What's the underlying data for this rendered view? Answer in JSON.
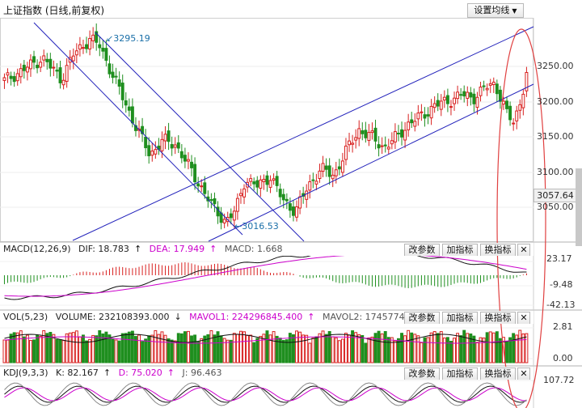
{
  "header": {
    "title": "上证指数",
    "period": "(日线,前复权)",
    "settings_label": "设置均线",
    "settings_icon": "caret-down-icon"
  },
  "main_chart": {
    "yaxis_ticks": [
      "3250.00",
      "3200.00",
      "3150.00",
      "3100.00",
      "3050.00"
    ],
    "current_price": "3057.64",
    "high_annotation": "3295.19",
    "low_annotation": "3016.53"
  },
  "macd": {
    "name": "MACD(12,26,9)",
    "dif": "DIF: 18.783",
    "dea": "DEA: 17.949",
    "macd": "MACD: 1.668",
    "ticks": [
      "23.17",
      "-9.48",
      "-42.13"
    ]
  },
  "vol": {
    "name": "VOL(5,23)",
    "volume": "VOLUME: 232108393.000",
    "mavol1": "MAVOL1: 224296845.400",
    "mavol2": "MAVOL2: 1745774",
    "ticks": [
      "2.81",
      "0.00"
    ]
  },
  "kdj": {
    "name": "KDJ(9,3,3)",
    "k": "K: 82.167",
    "d": "D: 75.020",
    "j": "J: 96.463",
    "ticks": [
      "107.72"
    ]
  },
  "buttons": {
    "change_params": "改参数",
    "add_indicator": "加指标",
    "swap_indicator": "换指标",
    "close": "✕"
  },
  "colors": {
    "up": "#d8201f",
    "down": "#1f8f1f",
    "trend": "#2222bb",
    "dea": "#cc00cc",
    "annotation": "#1a6fa8",
    "ellipse": "#e04040"
  },
  "chart_data": [
    {
      "type": "candlestick",
      "title": "上证指数 (日线,前复权)",
      "ylim": [
        3000,
        3300
      ],
      "annotations": [
        {
          "label": "3295.19",
          "value": 3295.19
        },
        {
          "label": "3016.53",
          "value": 3016.53
        }
      ],
      "last_close": 3057.64
    },
    {
      "type": "bar",
      "title": "MACD(12,26,9)",
      "series": [
        {
          "name": "DIF",
          "last": 18.783
        },
        {
          "name": "DEA",
          "last": 17.949
        },
        {
          "name": "MACD",
          "last": 1.668
        }
      ],
      "ylim": [
        -42.13,
        23.17
      ]
    },
    {
      "type": "bar",
      "title": "VOL(5,23)",
      "series": [
        {
          "name": "VOLUME",
          "last": 232108393.0
        },
        {
          "name": "MAVOL1",
          "last": 224296845.4
        }
      ],
      "ylim": [
        0,
        2.81
      ]
    },
    {
      "type": "line",
      "title": "KDJ(9,3,3)",
      "series": [
        {
          "name": "K",
          "last": 82.167
        },
        {
          "name": "D",
          "last": 75.02
        },
        {
          "name": "J",
          "last": 96.463
        }
      ]
    }
  ]
}
